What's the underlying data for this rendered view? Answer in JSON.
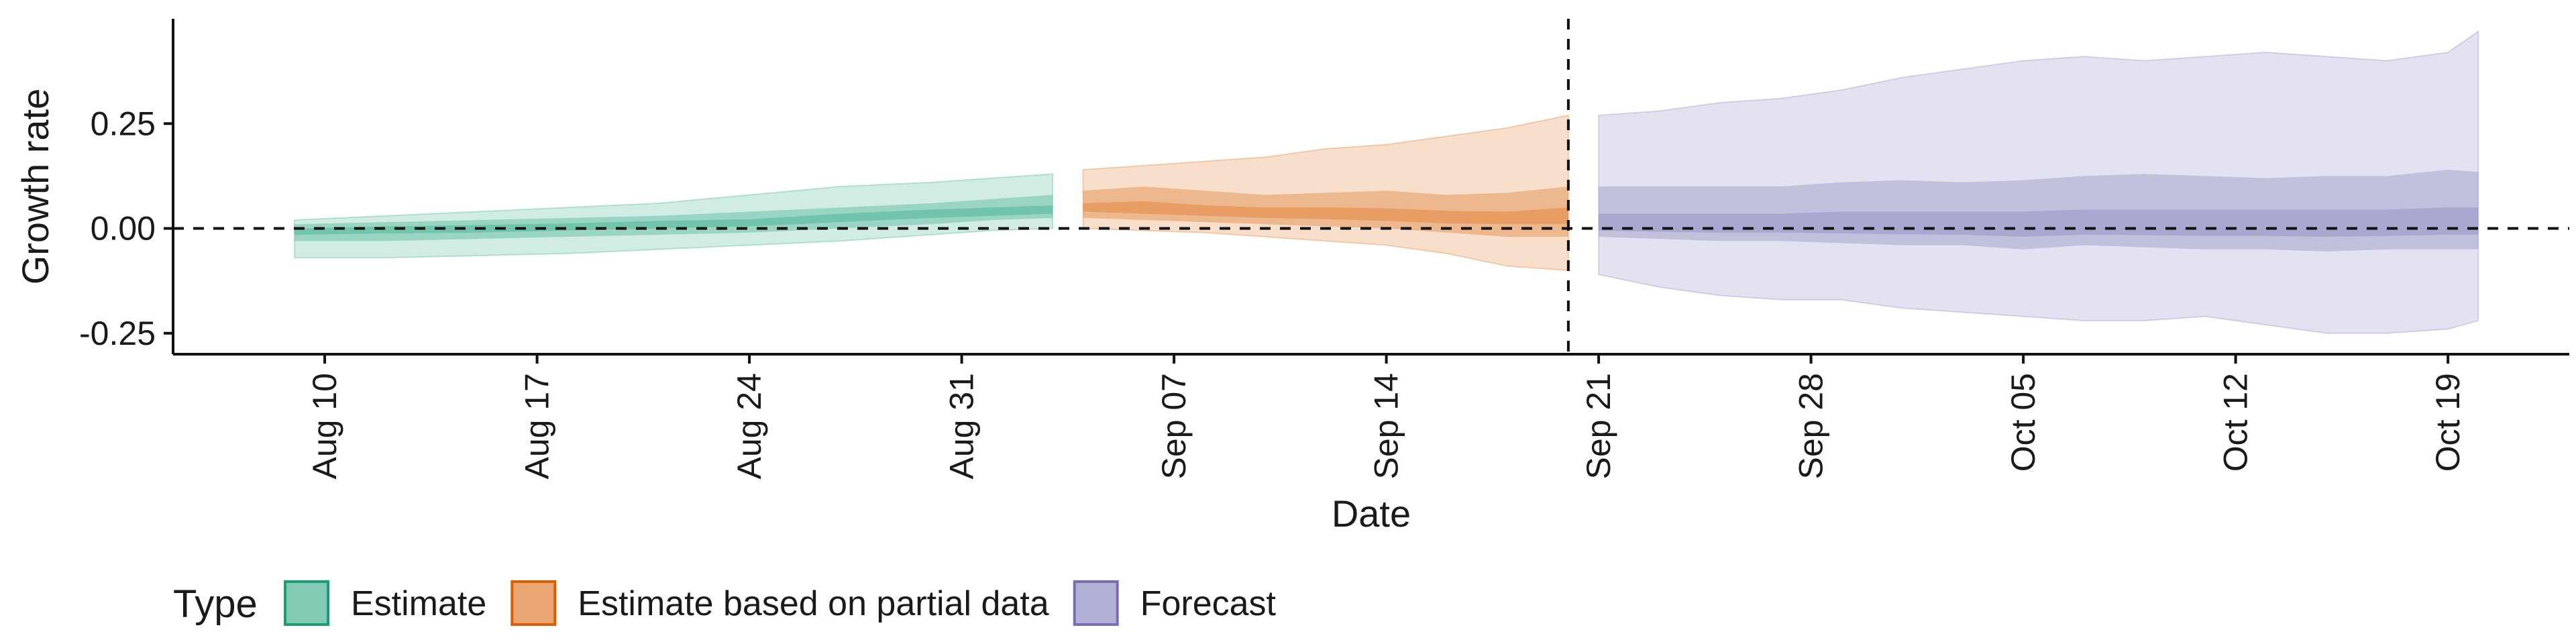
{
  "chart_data": {
    "type": "area",
    "title": "",
    "xlabel": "Date",
    "ylabel": "Growth rate",
    "x_type": "date",
    "xlim": [
      "2020-08-05",
      "2020-10-23"
    ],
    "ylim": [
      -0.3,
      0.5
    ],
    "x_ticks": [
      {
        "date": "2020-08-10",
        "label": "Aug 10"
      },
      {
        "date": "2020-08-17",
        "label": "Aug 17"
      },
      {
        "date": "2020-08-24",
        "label": "Aug 24"
      },
      {
        "date": "2020-08-31",
        "label": "Aug 31"
      },
      {
        "date": "2020-09-07",
        "label": "Sep 07"
      },
      {
        "date": "2020-09-14",
        "label": "Sep 14"
      },
      {
        "date": "2020-09-21",
        "label": "Sep 21"
      },
      {
        "date": "2020-09-28",
        "label": "Sep 28"
      },
      {
        "date": "2020-10-05",
        "label": "Oct 05"
      },
      {
        "date": "2020-10-12",
        "label": "Oct 12"
      },
      {
        "date": "2020-10-19",
        "label": "Oct 19"
      }
    ],
    "y_ticks": [
      {
        "value": 0.25,
        "label": "0.25"
      },
      {
        "value": 0.0,
        "label": "0.00"
      },
      {
        "value": -0.25,
        "label": "-0.25"
      }
    ],
    "reference_lines": {
      "horizontal_y": 0.0,
      "vertical_date": "2020-09-20",
      "style": "dashed"
    },
    "grid": false,
    "legend": {
      "title": "Type",
      "placement": "bottom-left",
      "entries": [
        "Estimate",
        "Estimate based on partial data",
        "Forecast"
      ]
    },
    "series": [
      {
        "name": "Estimate",
        "color": "#1B9E77",
        "bands": [
          {
            "level": "outer",
            "x": [
              "2020-08-09",
              "2020-08-12",
              "2020-08-15",
              "2020-08-18",
              "2020-08-21",
              "2020-08-24",
              "2020-08-27",
              "2020-08-30",
              "2020-09-01",
              "2020-09-03"
            ],
            "lower": [
              -0.07,
              -0.07,
              -0.065,
              -0.06,
              -0.05,
              -0.04,
              -0.03,
              -0.015,
              -0.005,
              0.0
            ],
            "upper": [
              0.02,
              0.03,
              0.04,
              0.05,
              0.06,
              0.08,
              0.1,
              0.11,
              0.12,
              0.13
            ]
          },
          {
            "level": "middle",
            "x": [
              "2020-08-09",
              "2020-08-12",
              "2020-08-15",
              "2020-08-18",
              "2020-08-21",
              "2020-08-24",
              "2020-08-27",
              "2020-08-30",
              "2020-09-01",
              "2020-09-03"
            ],
            "lower": [
              -0.03,
              -0.03,
              -0.025,
              -0.02,
              -0.015,
              -0.01,
              0.0,
              0.01,
              0.02,
              0.025
            ],
            "upper": [
              0.01,
              0.015,
              0.02,
              0.025,
              0.03,
              0.04,
              0.05,
              0.06,
              0.07,
              0.08
            ]
          },
          {
            "level": "inner",
            "x": [
              "2020-08-09",
              "2020-08-12",
              "2020-08-15",
              "2020-08-18",
              "2020-08-21",
              "2020-08-24",
              "2020-08-27",
              "2020-08-30",
              "2020-09-01",
              "2020-09-03"
            ],
            "lower": [
              -0.015,
              -0.012,
              -0.01,
              -0.005,
              0.0,
              0.005,
              0.015,
              0.025,
              0.03,
              0.035
            ],
            "upper": [
              0.0,
              0.005,
              0.008,
              0.012,
              0.018,
              0.022,
              0.035,
              0.045,
              0.05,
              0.055
            ]
          }
        ]
      },
      {
        "name": "Estimate based on partial data",
        "color": "#D95F02",
        "bands": [
          {
            "level": "outer",
            "x": [
              "2020-09-04",
              "2020-09-06",
              "2020-09-08",
              "2020-09-10",
              "2020-09-12",
              "2020-09-14",
              "2020-09-16",
              "2020-09-18",
              "2020-09-20"
            ],
            "lower": [
              0.0,
              -0.005,
              -0.01,
              -0.02,
              -0.03,
              -0.04,
              -0.06,
              -0.09,
              -0.1
            ],
            "upper": [
              0.14,
              0.15,
              0.16,
              0.17,
              0.19,
              0.2,
              0.22,
              0.24,
              0.27
            ]
          },
          {
            "level": "middle",
            "x": [
              "2020-09-04",
              "2020-09-06",
              "2020-09-08",
              "2020-09-10",
              "2020-09-12",
              "2020-09-14",
              "2020-09-16",
              "2020-09-18",
              "2020-09-20"
            ],
            "lower": [
              0.025,
              0.02,
              0.015,
              0.01,
              0.005,
              0.0,
              -0.01,
              -0.02,
              -0.02
            ],
            "upper": [
              0.09,
              0.1,
              0.09,
              0.08,
              0.085,
              0.09,
              0.08,
              0.085,
              0.1
            ]
          },
          {
            "level": "inner",
            "x": [
              "2020-09-04",
              "2020-09-06",
              "2020-09-08",
              "2020-09-10",
              "2020-09-12",
              "2020-09-14",
              "2020-09-16",
              "2020-09-18",
              "2020-09-20"
            ],
            "lower": [
              0.04,
              0.035,
              0.03,
              0.025,
              0.022,
              0.018,
              0.012,
              0.01,
              0.01
            ],
            "upper": [
              0.06,
              0.065,
              0.055,
              0.05,
              0.05,
              0.048,
              0.042,
              0.04,
              0.05
            ]
          }
        ]
      },
      {
        "name": "Forecast",
        "color": "#7570B3",
        "bands": [
          {
            "level": "outer",
            "x": [
              "2020-09-21",
              "2020-09-23",
              "2020-09-25",
              "2020-09-27",
              "2020-09-29",
              "2020-10-01",
              "2020-10-03",
              "2020-10-05",
              "2020-10-07",
              "2020-10-09",
              "2020-10-11",
              "2020-10-13",
              "2020-10-15",
              "2020-10-17",
              "2020-10-19",
              "2020-10-20"
            ],
            "lower": [
              -0.11,
              -0.14,
              -0.16,
              -0.17,
              -0.17,
              -0.19,
              -0.2,
              -0.21,
              -0.22,
              -0.22,
              -0.21,
              -0.23,
              -0.25,
              -0.25,
              -0.24,
              -0.22
            ],
            "upper": [
              0.27,
              0.28,
              0.3,
              0.31,
              0.33,
              0.36,
              0.38,
              0.4,
              0.41,
              0.4,
              0.41,
              0.42,
              0.41,
              0.4,
              0.42,
              0.47
            ]
          },
          {
            "level": "middle",
            "x": [
              "2020-09-21",
              "2020-09-23",
              "2020-09-25",
              "2020-09-27",
              "2020-09-29",
              "2020-10-01",
              "2020-10-03",
              "2020-10-05",
              "2020-10-07",
              "2020-10-09",
              "2020-10-11",
              "2020-10-13",
              "2020-10-15",
              "2020-10-17",
              "2020-10-19",
              "2020-10-20"
            ],
            "lower": [
              -0.02,
              -0.025,
              -0.03,
              -0.03,
              -0.035,
              -0.04,
              -0.04,
              -0.05,
              -0.04,
              -0.045,
              -0.05,
              -0.05,
              -0.055,
              -0.05,
              -0.05,
              -0.05
            ],
            "upper": [
              0.1,
              0.1,
              0.1,
              0.1,
              0.11,
              0.115,
              0.11,
              0.115,
              0.125,
              0.13,
              0.125,
              0.12,
              0.125,
              0.125,
              0.14,
              0.135
            ]
          },
          {
            "level": "inner",
            "x": [
              "2020-09-21",
              "2020-09-23",
              "2020-09-25",
              "2020-09-27",
              "2020-09-29",
              "2020-10-01",
              "2020-10-03",
              "2020-10-05",
              "2020-10-07",
              "2020-10-09",
              "2020-10-11",
              "2020-10-13",
              "2020-10-15",
              "2020-10-17",
              "2020-10-19",
              "2020-10-20"
            ],
            "lower": [
              -0.005,
              -0.008,
              -0.01,
              -0.01,
              -0.012,
              -0.014,
              -0.015,
              -0.02,
              -0.015,
              -0.016,
              -0.018,
              -0.018,
              -0.02,
              -0.018,
              -0.015,
              -0.015
            ],
            "upper": [
              0.035,
              0.035,
              0.035,
              0.035,
              0.04,
              0.04,
              0.04,
              0.04,
              0.045,
              0.045,
              0.045,
              0.045,
              0.045,
              0.045,
              0.05,
              0.05
            ]
          }
        ]
      }
    ]
  }
}
